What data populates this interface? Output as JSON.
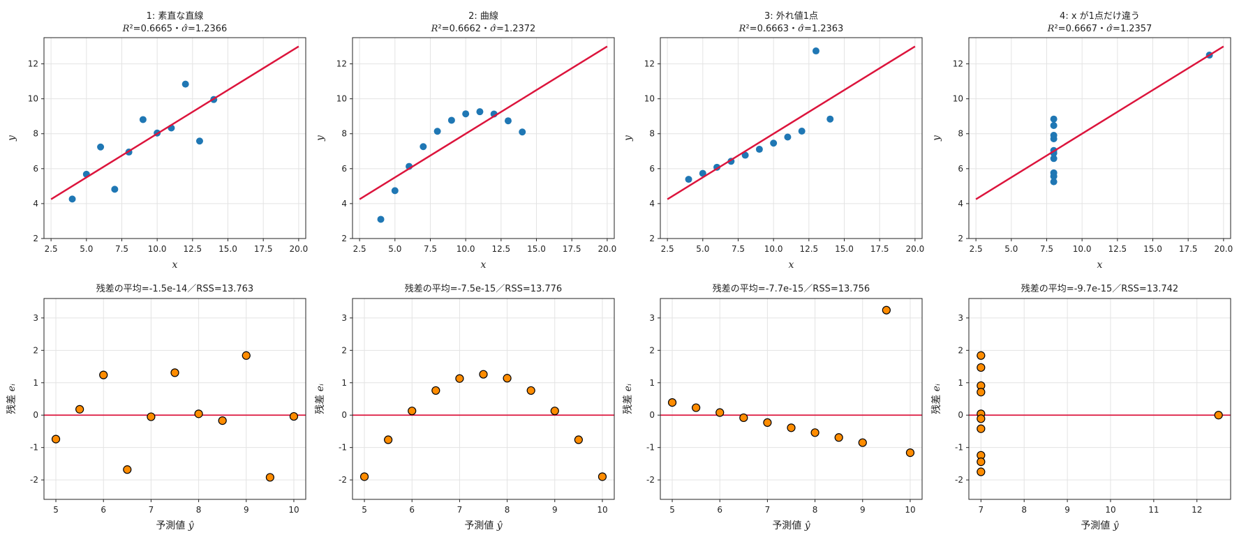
{
  "chart_data": [
    {
      "type": "scatter",
      "title": "1: 素直な直線",
      "subtitle": "R²=0.6665・σ̂=1.2366",
      "xlabel": "x",
      "ylabel": "y",
      "xlim": [
        2.0,
        20.5
      ],
      "ylim": [
        2,
        13.5
      ],
      "xticks": [
        2.5,
        5.0,
        7.5,
        10.0,
        12.5,
        15.0,
        17.5,
        20.0
      ],
      "yticks": [
        2,
        4,
        6,
        8,
        10,
        12
      ],
      "grid": true,
      "series": [
        {
          "role": "data",
          "color": "#1f77b4",
          "x": [
            10,
            8,
            13,
            9,
            11,
            14,
            6,
            4,
            12,
            7,
            5
          ],
          "y": [
            8.04,
            6.95,
            7.58,
            8.81,
            8.33,
            9.96,
            7.24,
            4.26,
            10.84,
            4.82,
            5.68
          ]
        },
        {
          "role": "fit",
          "color": "#dc143c",
          "x": [
            2.5,
            20.0
          ],
          "y": [
            4.25,
            13.0
          ]
        }
      ]
    },
    {
      "type": "scatter",
      "title": "2: 曲線",
      "subtitle": "R²=0.6662・σ̂=1.2372",
      "xlabel": "x",
      "ylabel": "y",
      "xlim": [
        2.0,
        20.5
      ],
      "ylim": [
        2,
        13.5
      ],
      "xticks": [
        2.5,
        5.0,
        7.5,
        10.0,
        12.5,
        15.0,
        17.5,
        20.0
      ],
      "yticks": [
        2,
        4,
        6,
        8,
        10,
        12
      ],
      "grid": true,
      "series": [
        {
          "role": "data",
          "color": "#1f77b4",
          "x": [
            10,
            8,
            13,
            9,
            11,
            14,
            6,
            4,
            12,
            7,
            5
          ],
          "y": [
            9.14,
            8.14,
            8.74,
            8.77,
            9.26,
            8.1,
            6.13,
            3.1,
            9.13,
            7.26,
            4.74
          ]
        },
        {
          "role": "fit",
          "color": "#dc143c",
          "x": [
            2.5,
            20.0
          ],
          "y": [
            4.25,
            13.0
          ]
        }
      ]
    },
    {
      "type": "scatter",
      "title": "3: 外れ値1点",
      "subtitle": "R²=0.6663・σ̂=1.2363",
      "xlabel": "x",
      "ylabel": "y",
      "xlim": [
        2.0,
        20.5
      ],
      "ylim": [
        2,
        13.5
      ],
      "xticks": [
        2.5,
        5.0,
        7.5,
        10.0,
        12.5,
        15.0,
        17.5,
        20.0
      ],
      "yticks": [
        2,
        4,
        6,
        8,
        10,
        12
      ],
      "grid": true,
      "series": [
        {
          "role": "data",
          "color": "#1f77b4",
          "x": [
            10,
            8,
            13,
            9,
            11,
            14,
            6,
            4,
            12,
            7,
            5
          ],
          "y": [
            7.46,
            6.77,
            12.74,
            7.11,
            7.81,
            8.84,
            6.08,
            5.39,
            8.15,
            6.42,
            5.73
          ]
        },
        {
          "role": "fit",
          "color": "#dc143c",
          "x": [
            2.5,
            20.0
          ],
          "y": [
            4.25,
            13.0
          ]
        }
      ]
    },
    {
      "type": "scatter",
      "title": "4: x が1点だけ違う",
      "subtitle": "R²=0.6667・σ̂=1.2357",
      "xlabel": "x",
      "ylabel": "y",
      "xlim": [
        2.0,
        20.5
      ],
      "ylim": [
        2,
        13.5
      ],
      "xticks": [
        2.5,
        5.0,
        7.5,
        10.0,
        12.5,
        15.0,
        17.5,
        20.0
      ],
      "yticks": [
        2,
        4,
        6,
        8,
        10,
        12
      ],
      "grid": true,
      "series": [
        {
          "role": "data",
          "color": "#1f77b4",
          "x": [
            8,
            8,
            8,
            8,
            8,
            8,
            8,
            19,
            8,
            8,
            8
          ],
          "y": [
            6.58,
            5.76,
            7.71,
            8.84,
            8.47,
            7.04,
            5.25,
            12.5,
            5.56,
            7.91,
            6.89
          ]
        },
        {
          "role": "fit",
          "color": "#dc143c",
          "x": [
            2.5,
            20.0
          ],
          "y": [
            4.25,
            13.0
          ]
        }
      ]
    },
    {
      "type": "scatter",
      "title": "残差の平均=-1.5e-14／RSS=13.763",
      "xlabel": "予測値 ŷ",
      "ylabel": "残差 eᵢ",
      "xlim": [
        4.75,
        10.25
      ],
      "ylim": [
        -2.6,
        3.6
      ],
      "xticks": [
        5,
        6,
        7,
        8,
        9,
        10
      ],
      "yticks": [
        -2,
        -1,
        0,
        1,
        2,
        3
      ],
      "grid": true,
      "zero_line_color": "#dc143c",
      "series": [
        {
          "role": "residual",
          "color": "#ff8c00",
          "x": [
            5.0,
            5.5,
            6.0,
            6.5,
            7.0,
            7.5,
            8.0,
            8.5,
            9.0,
            9.5,
            10.0
          ],
          "y": [
            -0.74,
            0.18,
            1.24,
            -1.68,
            -0.05,
            1.31,
            0.04,
            -0.17,
            1.84,
            -1.92,
            -0.04
          ]
        }
      ]
    },
    {
      "type": "scatter",
      "title": "残差の平均=-7.5e-15／RSS=13.776",
      "xlabel": "予測値 ŷ",
      "ylabel": "残差 eᵢ",
      "xlim": [
        4.75,
        10.25
      ],
      "ylim": [
        -2.6,
        3.6
      ],
      "xticks": [
        5,
        6,
        7,
        8,
        9,
        10
      ],
      "yticks": [
        -2,
        -1,
        0,
        1,
        2,
        3
      ],
      "grid": true,
      "zero_line_color": "#dc143c",
      "series": [
        {
          "role": "residual",
          "color": "#ff8c00",
          "x": [
            5.0,
            5.5,
            6.0,
            6.5,
            7.0,
            7.5,
            8.0,
            8.5,
            9.0,
            9.5,
            10.0
          ],
          "y": [
            -1.9,
            -0.76,
            0.13,
            0.76,
            1.13,
            1.26,
            1.14,
            0.76,
            0.13,
            -0.76,
            -1.9
          ]
        }
      ]
    },
    {
      "type": "scatter",
      "title": "残差の平均=-7.7e-15／RSS=13.756",
      "xlabel": "予測値 ŷ",
      "ylabel": "残差 eᵢ",
      "xlim": [
        4.75,
        10.25
      ],
      "ylim": [
        -2.6,
        3.6
      ],
      "xticks": [
        5,
        6,
        7,
        8,
        9,
        10
      ],
      "yticks": [
        -2,
        -1,
        0,
        1,
        2,
        3
      ],
      "grid": true,
      "zero_line_color": "#dc143c",
      "series": [
        {
          "role": "residual",
          "color": "#ff8c00",
          "x": [
            5.0,
            5.5,
            6.0,
            6.5,
            7.0,
            7.5,
            8.0,
            8.5,
            9.0,
            9.5,
            10.0
          ],
          "y": [
            0.39,
            0.23,
            0.08,
            -0.08,
            -0.23,
            -0.39,
            -0.54,
            -0.69,
            -0.85,
            3.24,
            -1.16
          ]
        }
      ]
    },
    {
      "type": "scatter",
      "title": "残差の平均=-9.7e-15／RSS=13.742",
      "xlabel": "予測値 ŷ",
      "ylabel": "残差 eᵢ",
      "xlim": [
        6.72,
        12.78
      ],
      "ylim": [
        -2.6,
        3.6
      ],
      "xticks": [
        7,
        8,
        9,
        10,
        11,
        12
      ],
      "yticks": [
        -2,
        -1,
        0,
        1,
        2,
        3
      ],
      "grid": true,
      "zero_line_color": "#dc143c",
      "series": [
        {
          "role": "residual",
          "color": "#ff8c00",
          "x": [
            7.0,
            7.0,
            7.0,
            7.0,
            7.0,
            7.0,
            7.0,
            7.0,
            7.0,
            7.0,
            12.5
          ],
          "y": [
            1.84,
            1.47,
            0.91,
            0.71,
            0.04,
            -0.11,
            -0.42,
            -1.24,
            -1.44,
            -1.75,
            0.0
          ]
        }
      ]
    }
  ]
}
